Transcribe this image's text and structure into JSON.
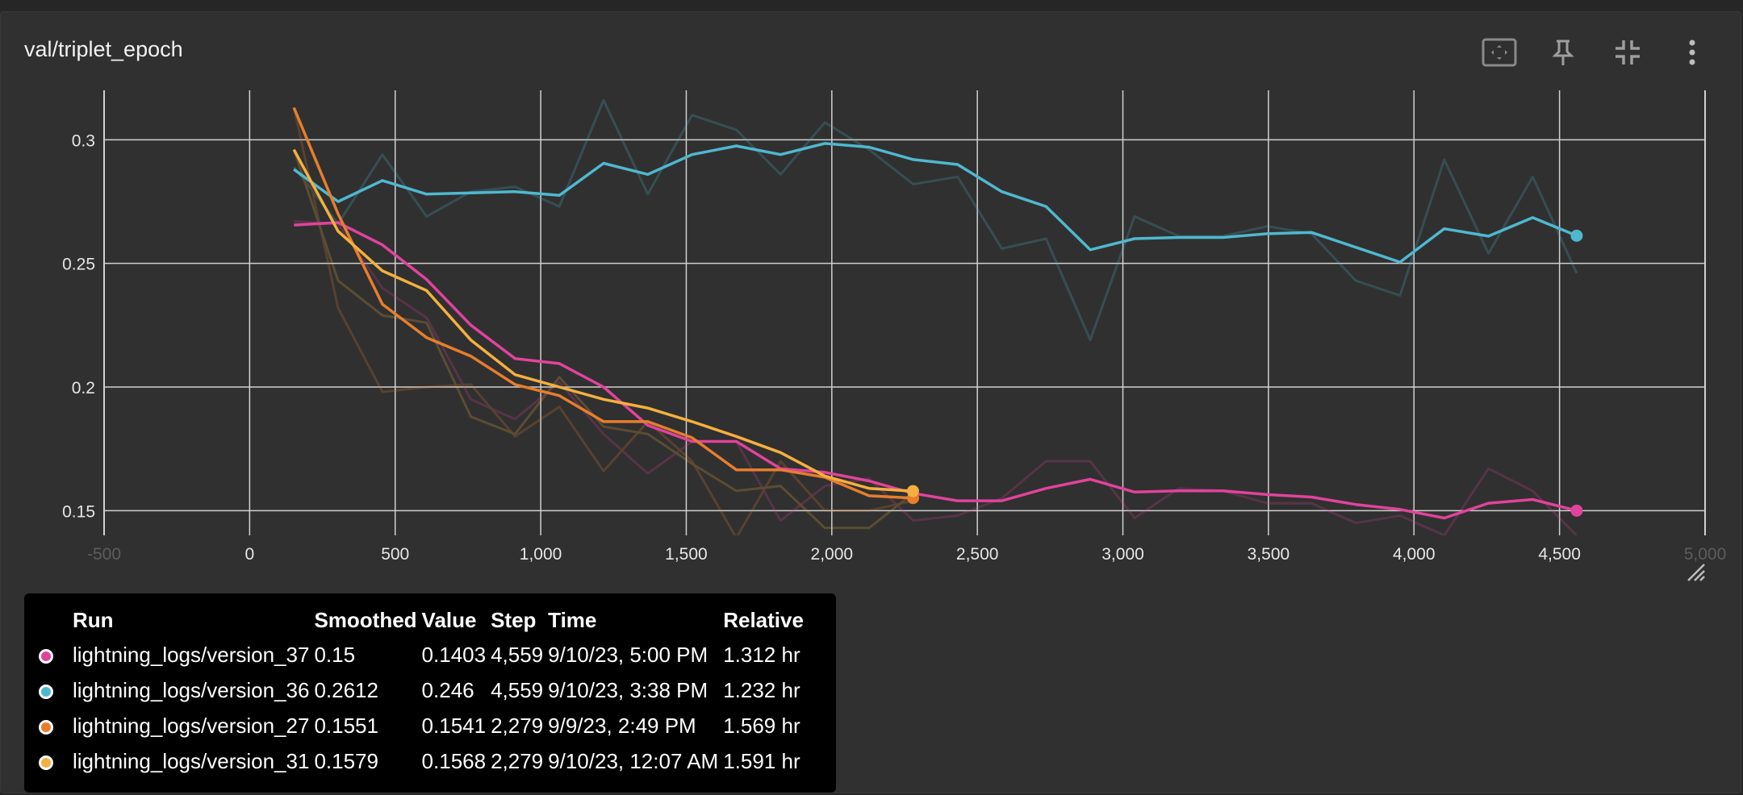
{
  "card": {
    "title": "val/triplet_epoch"
  },
  "toolbar": {
    "fit_icon": "fit-domain-icon",
    "pin_icon": "pin-icon",
    "collapse_icon": "collapse-icon",
    "more_icon": "more-vert-icon"
  },
  "chart_data": {
    "type": "line",
    "title": "val/triplet_epoch",
    "xlabel": "",
    "ylabel": "",
    "xlim": [
      -500,
      5000
    ],
    "ylim": [
      0.14,
      0.32
    ],
    "x_ticks": [
      -500,
      0,
      500,
      1000,
      1500,
      2000,
      2500,
      3000,
      3500,
      4000,
      4500,
      5000
    ],
    "x_tick_labels": [
      "-500",
      "0",
      "500",
      "1,000",
      "1,500",
      "2,000",
      "2,500",
      "3,000",
      "3,500",
      "4,000",
      "4,500",
      "5,000"
    ],
    "y_ticks": [
      0.15,
      0.2,
      0.25,
      0.3
    ],
    "y_tick_labels": [
      "0.15",
      "0.2",
      "0.25",
      "0.3"
    ],
    "grid": true,
    "series": [
      {
        "name": "lightning_logs/version_37",
        "color": "#e0439c",
        "x": [
          152,
          304,
          456,
          608,
          760,
          912,
          1064,
          1216,
          1368,
          1520,
          1672,
          1824,
          1976,
          2128,
          2280,
          2432,
          2584,
          2736,
          2888,
          3040,
          3192,
          3344,
          3496,
          3648,
          3800,
          3952,
          4104,
          4256,
          4408,
          4559
        ],
        "raw": [
          0.267,
          0.266,
          0.24,
          0.228,
          0.195,
          0.187,
          0.202,
          0.181,
          0.165,
          0.178,
          0.178,
          0.146,
          0.16,
          0.163,
          0.146,
          0.148,
          0.155,
          0.17,
          0.17,
          0.147,
          0.159,
          0.158,
          0.153,
          0.153,
          0.145,
          0.148,
          0.14,
          0.167,
          0.158,
          0.14
        ],
        "smoothed": [
          0.2655,
          0.2665,
          0.2575,
          0.2435,
          0.225,
          0.2115,
          0.2095,
          0.2,
          0.1845,
          0.178,
          0.178,
          0.167,
          0.1655,
          0.162,
          0.157,
          0.154,
          0.154,
          0.159,
          0.1627,
          0.1575,
          0.158,
          0.158,
          0.1565,
          0.1555,
          0.1525,
          0.1505,
          0.147,
          0.153,
          0.1545,
          0.15
        ]
      },
      {
        "name": "lightning_logs/version_36",
        "color": "#4fb8cf",
        "x": [
          152,
          304,
          456,
          608,
          760,
          912,
          1064,
          1216,
          1368,
          1520,
          1672,
          1824,
          1976,
          2128,
          2280,
          2432,
          2584,
          2736,
          2888,
          3040,
          3192,
          3344,
          3496,
          3648,
          3800,
          3952,
          4104,
          4256,
          4408,
          4559
        ],
        "raw": [
          0.289,
          0.266,
          0.294,
          0.269,
          0.279,
          0.281,
          0.273,
          0.316,
          0.278,
          0.31,
          0.304,
          0.286,
          0.307,
          0.296,
          0.282,
          0.285,
          0.256,
          0.26,
          0.219,
          0.269,
          0.261,
          0.261,
          0.265,
          0.262,
          0.243,
          0.237,
          0.292,
          0.254,
          0.285,
          0.246
        ],
        "smoothed": [
          0.288,
          0.275,
          0.2835,
          0.278,
          0.2785,
          0.279,
          0.2775,
          0.2905,
          0.286,
          0.294,
          0.2975,
          0.294,
          0.2985,
          0.297,
          0.292,
          0.29,
          0.279,
          0.273,
          0.2555,
          0.26,
          0.2605,
          0.2605,
          0.262,
          0.2625,
          0.2565,
          0.2505,
          0.264,
          0.261,
          0.2685,
          0.2612
        ]
      },
      {
        "name": "lightning_logs/version_27",
        "color": "#e67e2c",
        "x": [
          152,
          304,
          456,
          608,
          760,
          912,
          1064,
          1216,
          1368,
          1520,
          1672,
          1824,
          1976,
          2128,
          2279
        ],
        "raw": [
          0.313,
          0.232,
          0.198,
          0.2,
          0.201,
          0.18,
          0.192,
          0.166,
          0.186,
          0.17,
          0.139,
          0.17,
          0.15,
          0.15,
          0.154
        ],
        "smoothed": [
          0.313,
          0.27,
          0.2335,
          0.22,
          0.2125,
          0.201,
          0.1965,
          0.186,
          0.186,
          0.1795,
          0.1665,
          0.1665,
          0.1635,
          0.156,
          0.1551
        ]
      },
      {
        "name": "lightning_logs/version_31",
        "color": "#f4b03e",
        "x": [
          152,
          304,
          456,
          608,
          760,
          912,
          1064,
          1216,
          1368,
          1520,
          1672,
          1824,
          1976,
          2128,
          2279
        ],
        "raw": [
          0.296,
          0.243,
          0.229,
          0.226,
          0.188,
          0.181,
          0.204,
          0.184,
          0.181,
          0.169,
          0.158,
          0.16,
          0.143,
          0.143,
          0.157
        ],
        "smoothed": [
          0.296,
          0.263,
          0.247,
          0.239,
          0.219,
          0.205,
          0.2,
          0.195,
          0.1915,
          0.186,
          0.18,
          0.1735,
          0.164,
          0.159,
          0.1579
        ]
      }
    ]
  },
  "tooltip": {
    "headers": {
      "run": "Run",
      "smoothed": "Smoothed",
      "value": "Value",
      "step": "Step",
      "time": "Time",
      "relative": "Relative"
    },
    "rows": [
      {
        "color": "#e0439c",
        "run": "lightning_logs/version_37",
        "smoothed": "0.15",
        "value": "0.1403",
        "step": "4,559",
        "time": "9/10/23, 5:00 PM",
        "relative": "1.312 hr"
      },
      {
        "color": "#4fb8cf",
        "run": "lightning_logs/version_36",
        "smoothed": "0.2612",
        "value": "0.246",
        "step": "4,559",
        "time": "9/10/23, 3:38 PM",
        "relative": "1.232 hr"
      },
      {
        "color": "#e67e2c",
        "run": "lightning_logs/version_27",
        "smoothed": "0.1551",
        "value": "0.1541",
        "step": "2,279",
        "time": "9/9/23, 2:49 PM",
        "relative": "1.569 hr"
      },
      {
        "color": "#f4b03e",
        "run": "lightning_logs/version_31",
        "smoothed": "0.1579",
        "value": "0.1568",
        "step": "2,279",
        "time": "9/10/23, 12:07 AM",
        "relative": "1.591 hr"
      }
    ]
  }
}
